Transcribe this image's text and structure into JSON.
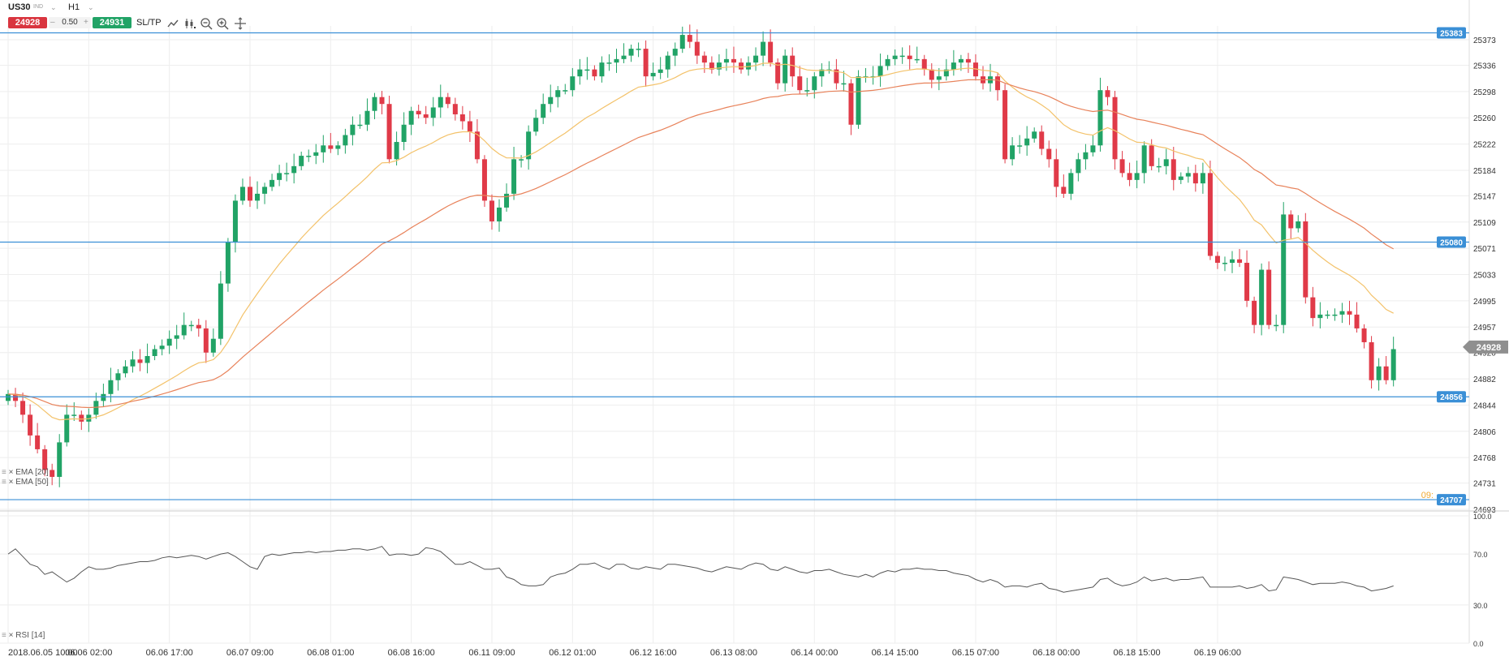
{
  "toolbar": {
    "symbol": "US30",
    "symbol_sub": "IND",
    "timeframe": "H1",
    "sell_price": "24928",
    "buy_price": "24931",
    "lot": "0.50",
    "sltp_label": "SL/TP",
    "icons": [
      "line-chart-icon",
      "candles-icon",
      "zoom-out-icon",
      "zoom-in-icon",
      "crosshair-icon"
    ]
  },
  "colors": {
    "bull": "#21a366",
    "bear": "#e03a48",
    "ema_fast": "#f3c26a",
    "ema_slow": "#e8825a",
    "level": "#3a8fd6",
    "current": "#8f8f8f",
    "rsi": "#555555",
    "grid": "#eeeeee"
  },
  "chart_data": [
    {
      "type": "candlestick",
      "symbol": "US30",
      "timeframe": "H1",
      "ylim": [
        24693,
        25393
      ],
      "y_ticks": [
        25373,
        25336,
        25298,
        25260,
        25222,
        25184,
        25147,
        25109,
        25071,
        25033,
        24995,
        24957,
        24920,
        24882,
        24844,
        24806,
        24768,
        24731,
        24693
      ],
      "x_ticks": [
        "2018.06.05 10:00",
        "06.06 02:00",
        "06.06 17:00",
        "06.07 09:00",
        "06.08 01:00",
        "06.08 16:00",
        "06.11 09:00",
        "06.12 01:00",
        "06.12 16:00",
        "06.13 08:00",
        "06.14 00:00",
        "06.14 15:00",
        "06.15 07:00",
        "06.18 00:00",
        "06.18 15:00",
        "06.19 06:00"
      ],
      "close_series": [
        24860,
        24850,
        24830,
        24800,
        24780,
        24750,
        24740,
        24790,
        24830,
        24830,
        24820,
        24830,
        24850,
        24860,
        24880,
        24890,
        24900,
        24910,
        24905,
        24915,
        24925,
        24930,
        24940,
        24945,
        24960,
        24960,
        24955,
        24920,
        24940,
        25020,
        25080,
        25140,
        25160,
        25140,
        25150,
        25160,
        25170,
        25180,
        25180,
        25190,
        25205,
        25205,
        25210,
        25220,
        25215,
        25220,
        25235,
        25250,
        25250,
        25270,
        25290,
        25280,
        25200,
        25225,
        25250,
        25270,
        25265,
        25260,
        25275,
        25290,
        25280,
        25265,
        25255,
        25240,
        25200,
        25140,
        25110,
        25130,
        25150,
        25200,
        25200,
        25240,
        25260,
        25280,
        25290,
        25300,
        25300,
        25320,
        25330,
        25330,
        25320,
        25340,
        25340,
        25345,
        25350,
        25360,
        25360,
        25320,
        25325,
        25330,
        25350,
        25360,
        25380,
        25370,
        25350,
        25340,
        25330,
        25340,
        25345,
        25340,
        25330,
        25340,
        25350,
        25370,
        25340,
        25310,
        25350,
        25320,
        25300,
        25300,
        25320,
        25330,
        25330,
        25310,
        25310,
        25250,
        25320,
        25320,
        25320,
        25335,
        25345,
        25350,
        25350,
        25345,
        25345,
        25330,
        25315,
        25320,
        25330,
        25340,
        25345,
        25340,
        25320,
        25310,
        25320,
        25300,
        25200,
        25220,
        25220,
        25230,
        25240,
        25215,
        25200,
        25160,
        25150,
        25180,
        25200,
        25210,
        25220,
        25300,
        25290,
        25200,
        25180,
        25170,
        25180,
        25220,
        25190,
        25190,
        25200,
        25170,
        25175,
        25180,
        25165,
        25180,
        25060,
        25050,
        25050,
        25055,
        25050,
        24995,
        24960,
        25040,
        24960,
        24960,
        25120,
        25100,
        25110,
        25000,
        24970,
        24975,
        24975,
        24975,
        24980,
        24975,
        24955,
        24935,
        24880,
        24900,
        24880,
        24925
      ],
      "current_price": 24928,
      "levels": [
        25383,
        25080,
        24856,
        24707
      ],
      "level_label_overlap": "09:",
      "series": [
        {
          "name": "EMA [20]",
          "kind": "overlay"
        },
        {
          "name": "EMA [50]",
          "kind": "overlay"
        }
      ],
      "grid": true,
      "legend": "bottom-left"
    },
    {
      "type": "line",
      "name": "RSI [14]",
      "ylim": [
        0.0,
        100.0
      ],
      "y_ticks": [
        "100.0",
        "70.0",
        "30.0",
        "0.0"
      ],
      "values": [
        70,
        74,
        68,
        62,
        60,
        54,
        56,
        52,
        48,
        51,
        56,
        60,
        58,
        58,
        59,
        61,
        62,
        63,
        64,
        64,
        65,
        67,
        68,
        67,
        68,
        69,
        68,
        66,
        68,
        70,
        71,
        68,
        64,
        60,
        58,
        68,
        70,
        69,
        70,
        71,
        71,
        72,
        71,
        72,
        72,
        73,
        73,
        74,
        74,
        73,
        74,
        76,
        69,
        70,
        70,
        69,
        70,
        75,
        74,
        72,
        67,
        62,
        62,
        64,
        61,
        58,
        58,
        59,
        52,
        50,
        46,
        45,
        45,
        46,
        52,
        54,
        55,
        58,
        62,
        62,
        63,
        60,
        58,
        62,
        62,
        59,
        58,
        60,
        59,
        58,
        62,
        62,
        61,
        60,
        59,
        57,
        56,
        58,
        60,
        59,
        58,
        61,
        63,
        62,
        58,
        57,
        60,
        58,
        56,
        55,
        57,
        57,
        58,
        56,
        54,
        53,
        52,
        54,
        52,
        55,
        57,
        56,
        58,
        58,
        59,
        58,
        58,
        57,
        57,
        55,
        54,
        53,
        50,
        48,
        50,
        48,
        44,
        45,
        45,
        44,
        46,
        47,
        43,
        42,
        40,
        41,
        42,
        43,
        44,
        50,
        51,
        47,
        45,
        46,
        48,
        52,
        49,
        50,
        51,
        49,
        50,
        50,
        51,
        52,
        44,
        44,
        44,
        44,
        45,
        43,
        44,
        46,
        41,
        42,
        52,
        51,
        50,
        48,
        46,
        47,
        47,
        47,
        48,
        47,
        45,
        44,
        41,
        42,
        43,
        45
      ],
      "levels": [
        70.0,
        30.0
      ],
      "grid": true
    }
  ]
}
